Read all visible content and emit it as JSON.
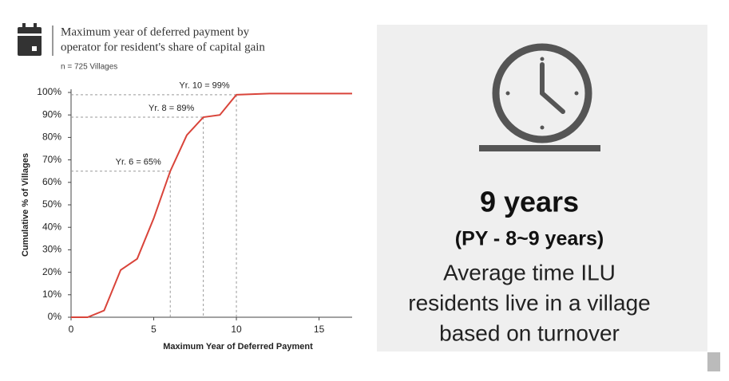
{
  "header": {
    "title": [
      "Maximum year of deferred payment by",
      "operator for resident's share of capital gain"
    ],
    "subtitle": "n = 725 Villages"
  },
  "chart_data": {
    "type": "line",
    "x": [
      0,
      1,
      2,
      3,
      4,
      5,
      6,
      7,
      8,
      9,
      10,
      12,
      15,
      17
    ],
    "series": [
      {
        "name": "Cumulative % of Villages",
        "color": "#d9443a",
        "values": [
          0,
          0,
          3,
          21,
          26,
          44,
          65,
          81,
          89,
          90,
          99,
          99.5,
          99.5,
          99.5
        ]
      }
    ],
    "xlim": [
      0,
      17
    ],
    "xticks": [
      0,
      5,
      10,
      15
    ],
    "ylim": [
      0,
      100
    ],
    "yticks": [
      {
        "value": 0,
        "label": "0%"
      },
      {
        "value": 10,
        "label": "10%"
      },
      {
        "value": 20,
        "label": "20%"
      },
      {
        "value": 30,
        "label": "30%"
      },
      {
        "value": 40,
        "label": "40%"
      },
      {
        "value": 50,
        "label": "50%"
      },
      {
        "value": 60,
        "label": "60%"
      },
      {
        "value": 70,
        "label": "70%"
      },
      {
        "value": 80,
        "label": "80%"
      },
      {
        "value": 90,
        "label": "90%"
      },
      {
        "value": 100,
        "label": "100%"
      }
    ],
    "x_label": "Maximum Year of Deferred Payment",
    "y_label": "Cumulative % of Villages",
    "annotations": [
      {
        "text": "Yr. 6 = 65%",
        "x": 6,
        "y": 65
      },
      {
        "text": "Yr. 8 = 89%",
        "x": 8,
        "y": 89
      },
      {
        "text": "Yr. 10 = 99%",
        "x": 10,
        "y": 99
      }
    ]
  },
  "panel": {
    "headline": "9 years",
    "subheadline": "(PY - 8~9 years)",
    "description": [
      "Average time ILU",
      "residents live in a village",
      "based on turnover"
    ]
  }
}
